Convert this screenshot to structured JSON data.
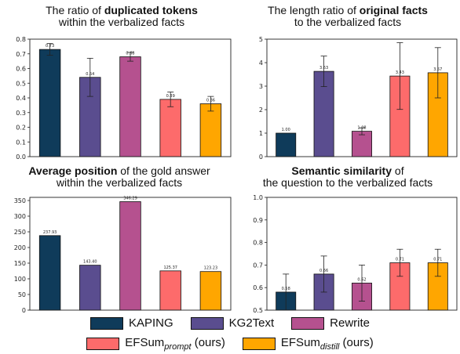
{
  "legend": {
    "items": [
      {
        "name": "KAPING",
        "color": "#0f3b5a"
      },
      {
        "name": "KG2Text",
        "color": "#5a4d8f"
      },
      {
        "name": "Rewrite",
        "color": "#b5518f"
      },
      {
        "name": "EFSum",
        "sub": "prompt",
        "suffix": "(ours)",
        "color": "#fd6b6b"
      },
      {
        "name": "EFSum",
        "sub": "distill",
        "suffix": "(ours)",
        "color": "#ffa600"
      }
    ]
  },
  "chart_data": [
    {
      "type": "bar",
      "title_pre": "The ratio of ",
      "title_bold": "duplicated tokens",
      "title_line2": "within the verbalized facts",
      "categories": [
        "KAPING",
        "KG2Text",
        "Rewrite",
        "EFSum_prompt",
        "EFSum_distill"
      ],
      "values": [
        0.73,
        0.54,
        0.68,
        0.39,
        0.36
      ],
      "errors": [
        0.04,
        0.13,
        0.03,
        0.05,
        0.05
      ],
      "labels": [
        "0.73",
        "0.54",
        "0.68",
        "0.39",
        "0.36"
      ],
      "ylim": [
        0,
        0.8
      ],
      "yticks": [
        0.0,
        0.1,
        0.2,
        0.3,
        0.4,
        0.5,
        0.6,
        0.7,
        0.8
      ],
      "ytick_labels": [
        "0.0",
        "0.1",
        "0.2",
        "0.3",
        "0.4",
        "0.5",
        "0.6",
        "0.7",
        "0.8"
      ]
    },
    {
      "type": "bar",
      "title_pre": "The length ratio of ",
      "title_bold": "original facts",
      "title_line2": "to the verbalized facts",
      "categories": [
        "KAPING",
        "KG2Text",
        "Rewrite",
        "EFSum_prompt",
        "EFSum_distill"
      ],
      "values": [
        1.0,
        3.63,
        1.08,
        3.43,
        3.57
      ],
      "errors": [
        0.0,
        0.65,
        0.15,
        1.42,
        1.07
      ],
      "labels": [
        "1.00",
        "3.63",
        "1.08",
        "3.43",
        "3.57"
      ],
      "ylim": [
        0,
        5
      ],
      "yticks": [
        0,
        1,
        2,
        3,
        4,
        5
      ],
      "ytick_labels": [
        "0",
        "1",
        "2",
        "3",
        "4",
        "5"
      ]
    },
    {
      "type": "bar",
      "title_bold": "Average position",
      "title_post": " of the gold answer",
      "title_line2": "within the verbalized facts",
      "categories": [
        "KAPING",
        "KG2Text",
        "Rewrite",
        "EFSum_prompt",
        "EFSum_distill"
      ],
      "values": [
        237.93,
        143.4,
        346.29,
        125.37,
        123.23
      ],
      "errors": [
        0,
        0,
        0,
        0,
        0
      ],
      "labels": [
        "237.93",
        "143.40",
        "346.29",
        "125.37",
        "123.23"
      ],
      "ylim": [
        0,
        360
      ],
      "yticks": [
        0,
        50,
        100,
        150,
        200,
        250,
        300,
        350
      ],
      "ytick_labels": [
        "0",
        "50",
        "100",
        "150",
        "200",
        "250",
        "300",
        "350"
      ]
    },
    {
      "type": "bar",
      "title_bold": "Semantic similarity",
      "title_post": " of",
      "title_line2": "the question to the verbalized facts",
      "categories": [
        "KAPING",
        "KG2Text",
        "Rewrite",
        "EFSum_prompt",
        "EFSum_distill"
      ],
      "values": [
        0.58,
        0.66,
        0.62,
        0.71,
        0.71
      ],
      "errors": [
        0.08,
        0.08,
        0.08,
        0.06,
        0.06
      ],
      "labels": [
        "0.58",
        "0.66",
        "0.62",
        "0.71",
        "0.71"
      ],
      "ylim": [
        0.5,
        1.0
      ],
      "yticks": [
        0.5,
        0.6,
        0.7,
        0.8,
        0.9,
        1.0
      ],
      "ytick_labels": [
        "0.5",
        "0.6",
        "0.7",
        "0.8",
        "0.9",
        "1.0"
      ]
    }
  ]
}
